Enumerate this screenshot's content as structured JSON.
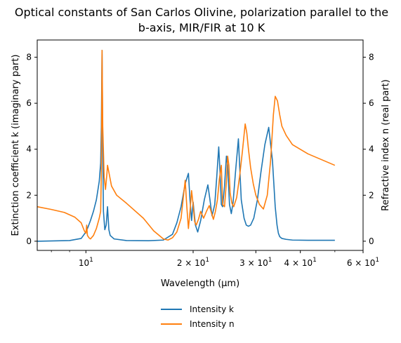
{
  "chart_data": {
    "type": "line",
    "title_line1": "Optical constants of San Carlos Olivine, polarization parallel to the",
    "title_line2": "b-axis, MIR/FIR at 10 K",
    "xlabel": "Wavelength (μm)",
    "ylabel_left": "Extinction coefficient k (imaginary part)",
    "ylabel_right": "Refractive index n (real part)",
    "x_scale": "log",
    "xlim": [
      7.3,
      60
    ],
    "ylim_left": [
      -0.4,
      8.75
    ],
    "ylim_right": [
      -0.4,
      8.75
    ],
    "x_ticks": [
      {
        "value": 10,
        "base": "10",
        "exp": "1",
        "mant": ""
      },
      {
        "value": 20,
        "base": "10",
        "exp": "1",
        "mant": "2 × "
      },
      {
        "value": 30,
        "base": "10",
        "exp": "1",
        "mant": "3 × "
      },
      {
        "value": 40,
        "base": "10",
        "exp": "1",
        "mant": "4 × "
      },
      {
        "value": 60,
        "base": "10",
        "exp": "1",
        "mant": "6 × "
      }
    ],
    "y_ticks_left": [
      0,
      2,
      4,
      6,
      8
    ],
    "y_ticks_right": [
      0,
      2,
      4,
      6,
      8
    ],
    "grid": false,
    "legend_position": "bottom-center",
    "series": [
      {
        "name": "Intensity k",
        "axis": "left",
        "color": "#1f77b4",
        "x": [
          7.3,
          9.0,
          9.7,
          10.0,
          10.1,
          10.3,
          10.5,
          10.7,
          10.9,
          11.0,
          11.05,
          11.1,
          11.15,
          11.2,
          11.3,
          11.4,
          11.5,
          11.55,
          11.6,
          11.7,
          12.0,
          13.0,
          15.0,
          16.5,
          17.5,
          18.0,
          18.5,
          19.0,
          19.4,
          19.6,
          19.8,
          20.0,
          20.3,
          20.6,
          21.0,
          21.5,
          22.0,
          22.3,
          22.6,
          23.0,
          23.3,
          23.6,
          23.8,
          24.0,
          24.2,
          24.5,
          24.8,
          25.0,
          25.3,
          25.6,
          25.9,
          26.3,
          26.8,
          27.3,
          27.8,
          28.2,
          28.6,
          29.0,
          29.6,
          30.3,
          31.0,
          31.8,
          32.6,
          33.4,
          34.0,
          34.4,
          34.7,
          35.0,
          35.5,
          36.5,
          38.0,
          42.0,
          50.0
        ],
        "y": [
          0.0,
          0.03,
          0.12,
          0.4,
          0.55,
          0.9,
          1.3,
          1.8,
          2.6,
          3.4,
          5.0,
          8.3,
          4.0,
          1.3,
          0.5,
          0.7,
          1.5,
          1.0,
          0.5,
          0.25,
          0.1,
          0.03,
          0.02,
          0.05,
          0.3,
          0.8,
          1.5,
          2.5,
          2.95,
          1.8,
          0.9,
          1.7,
          0.7,
          0.4,
          0.9,
          1.8,
          2.45,
          1.8,
          1.1,
          1.6,
          2.8,
          4.1,
          3.0,
          1.6,
          1.5,
          2.4,
          3.7,
          3.3,
          1.6,
          1.2,
          1.7,
          3.0,
          4.45,
          1.8,
          1.0,
          0.7,
          0.65,
          0.7,
          1.0,
          1.8,
          3.0,
          4.2,
          4.95,
          3.5,
          1.5,
          0.7,
          0.35,
          0.2,
          0.12,
          0.08,
          0.05,
          0.04,
          0.04
        ]
      },
      {
        "name": "Intensity n",
        "axis": "right",
        "color": "#ff7f0e",
        "x": [
          7.3,
          8.0,
          8.7,
          9.3,
          9.7,
          9.9,
          10.0,
          10.05,
          10.1,
          10.2,
          10.3,
          10.5,
          10.7,
          10.9,
          11.0,
          11.05,
          11.1,
          11.15,
          11.25,
          11.35,
          11.45,
          11.5,
          11.6,
          11.8,
          12.2,
          13.0,
          14.5,
          15.5,
          16.5,
          17.0,
          17.5,
          18.0,
          18.5,
          18.8,
          19.0,
          19.2,
          19.4,
          19.6,
          19.8,
          20.0,
          20.2,
          20.4,
          20.7,
          21.0,
          21.4,
          21.8,
          22.2,
          22.5,
          22.8,
          23.1,
          23.4,
          23.7,
          24.0,
          24.2,
          24.5,
          24.8,
          25.0,
          25.2,
          25.4,
          25.7,
          26.0,
          26.5,
          27.0,
          27.5,
          28.0,
          28.3,
          28.6,
          29.0,
          29.5,
          30.0,
          30.7,
          31.5,
          32.3,
          33.0,
          33.6,
          34.0,
          34.5,
          35.0,
          35.5,
          36.5,
          38.0,
          42.0,
          50.0
        ],
        "y": [
          1.5,
          1.38,
          1.25,
          1.05,
          0.8,
          0.45,
          0.35,
          0.7,
          0.25,
          0.15,
          0.1,
          0.25,
          0.55,
          1.0,
          1.3,
          3.0,
          8.3,
          5.0,
          2.8,
          2.25,
          2.9,
          3.3,
          3.0,
          2.4,
          2.0,
          1.65,
          1.0,
          0.45,
          0.1,
          0.05,
          0.15,
          0.4,
          1.0,
          2.0,
          2.65,
          1.5,
          0.55,
          1.3,
          2.2,
          1.6,
          0.85,
          0.7,
          0.95,
          1.3,
          1.0,
          1.3,
          1.55,
          1.25,
          0.95,
          1.3,
          1.8,
          2.7,
          3.3,
          1.6,
          1.5,
          2.6,
          3.7,
          3.3,
          2.1,
          1.65,
          1.5,
          1.9,
          2.8,
          3.9,
          5.1,
          4.7,
          4.0,
          3.2,
          2.5,
          2.0,
          1.6,
          1.4,
          2.0,
          3.5,
          5.5,
          6.3,
          6.1,
          5.5,
          5.0,
          4.6,
          4.2,
          3.8,
          3.3
        ]
      }
    ]
  }
}
